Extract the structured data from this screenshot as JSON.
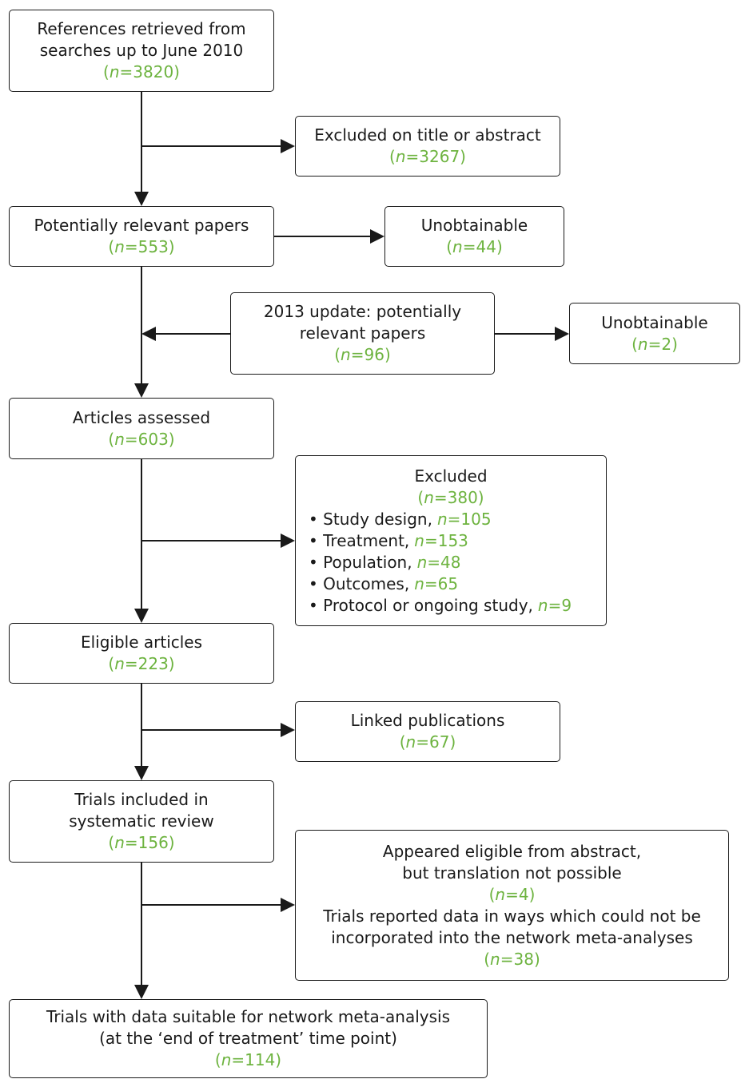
{
  "nodes": [
    {
      "blocks": [
        {
          "lines": [
            "References retrieved from",
            "searches up to June 2010"
          ],
          "count": "(n=3820)"
        }
      ]
    },
    {
      "blocks": [
        {
          "lines": [
            "Excluded on title or abstract"
          ],
          "count": "(n=3267)"
        }
      ]
    },
    {
      "blocks": [
        {
          "lines": [
            "Potentially relevant papers"
          ],
          "count": "(n=553)"
        }
      ]
    },
    {
      "blocks": [
        {
          "lines": [
            "Unobtainable"
          ],
          "count": "(n=44)"
        }
      ]
    },
    {
      "blocks": [
        {
          "lines": [
            "2013 update: potentially",
            "relevant papers"
          ],
          "count": "(n=96)"
        }
      ]
    },
    {
      "blocks": [
        {
          "lines": [
            "Unobtainable"
          ],
          "count": "(n=2)"
        }
      ]
    },
    {
      "blocks": [
        {
          "lines": [
            "Articles assessed"
          ],
          "count": "(n=603)"
        }
      ]
    },
    {
      "blocks": [
        {
          "lines": [
            "Excluded"
          ],
          "count": "(n=380)"
        }
      ],
      "items": [
        {
          "text": "Study design,",
          "count": "n=105"
        },
        {
          "text": "Treatment,",
          "count": "n=153"
        },
        {
          "text": "Population,",
          "count": "n=48"
        },
        {
          "text": "Outcomes,",
          "count": "n=65"
        },
        {
          "text": "Protocol or ongoing study,",
          "count": "n=9"
        }
      ]
    },
    {
      "blocks": [
        {
          "lines": [
            "Eligible articles"
          ],
          "count": "(n=223)"
        }
      ]
    },
    {
      "blocks": [
        {
          "lines": [
            "Linked publications"
          ],
          "count": "(n=67)"
        }
      ]
    },
    {
      "blocks": [
        {
          "lines": [
            "Trials included in",
            "systematic review"
          ],
          "count": "(n=156)"
        }
      ]
    },
    {
      "blocks": [
        {
          "lines": [
            "Appeared eligible from abstract,",
            "but translation not possible"
          ],
          "count": "(n=4)"
        },
        {
          "lines": [
            "Trials reported data in ways which could not be",
            "incorporated into the network meta-analyses"
          ],
          "count": "(n=38)"
        }
      ]
    },
    {
      "blocks": [
        {
          "lines": [
            "Trials with data suitable for network meta-analysis",
            "(at the ‘end of treatment’ time point)"
          ],
          "count": "(n=114)"
        }
      ]
    }
  ]
}
